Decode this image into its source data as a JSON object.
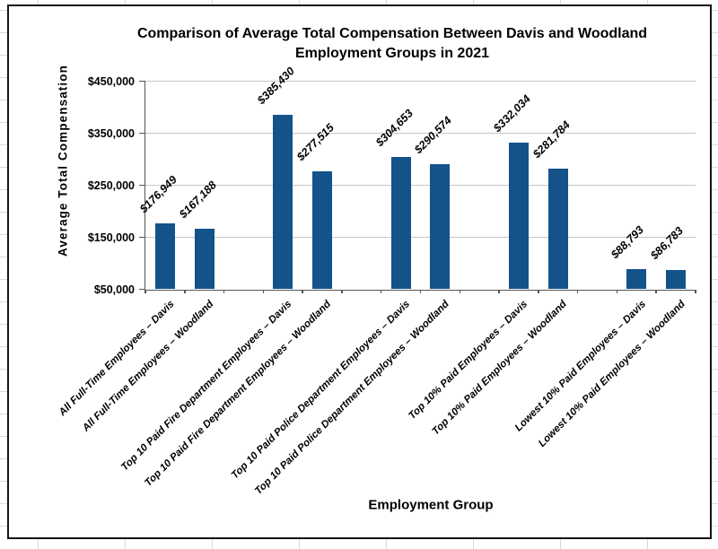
{
  "chart_data": {
    "type": "bar",
    "title": "Comparison of Average Total Compensation Between Davis and Woodland Employment Groups in 2021",
    "title_lines": [
      "Comparison of Average Total Compensation Between Davis and Woodland",
      "Employment Groups in 2021"
    ],
    "xlabel": "Employment Group",
    "ylabel": "Average Total Compensation",
    "ylim": [
      50000,
      450000
    ],
    "grid": "horizontal",
    "legend": "none",
    "yticks": [
      {
        "label": "$450,000",
        "value": 450000
      },
      {
        "label": "$350,000",
        "value": 350000
      },
      {
        "label": "$250,000",
        "value": 250000
      },
      {
        "label": "$150,000",
        "value": 150000
      },
      {
        "label": "$50,000",
        "value": 50000
      }
    ],
    "total_slots": 14,
    "bars": [
      {
        "category": "All Full-Time Employees – Davis",
        "value": 176949,
        "label": "$176,949",
        "slot": 0
      },
      {
        "category": "All Full-Time Employees – Woodland",
        "value": 167188,
        "label": "$167,188",
        "slot": 1
      },
      {
        "category": "Top 10 Paid Fire Department Employees – Davis",
        "value": 385430,
        "label": "$385,430",
        "slot": 3
      },
      {
        "category": "Top 10 Paid Fire Department Employees – Woodland",
        "value": 277515,
        "label": "$277,515",
        "slot": 4
      },
      {
        "category": "Top 10 Paid Police Department Employees – Davis",
        "value": 304653,
        "label": "$304,653",
        "slot": 6
      },
      {
        "category": "Top 10 Paid Police Department Employees – Woodland",
        "value": 290574,
        "label": "$290,574",
        "slot": 7
      },
      {
        "category": "Top 10% Paid Employees – Davis",
        "value": 332034,
        "label": "$332,034",
        "slot": 9
      },
      {
        "category": "Top 10% Paid Employees – Woodland",
        "value": 281784,
        "label": "$281,784",
        "slot": 10
      },
      {
        "category": "Lowest 10% Paid Employees – Davis",
        "value": 88793,
        "label": "$88,793",
        "slot": 12
      },
      {
        "category": "Lowest 10% Paid Employees – Woodland",
        "value": 86783,
        "label": "$86,783",
        "slot": 13
      }
    ],
    "colors": {
      "bar": "#14528A",
      "gridline": "#c7c7c7",
      "axis": "#555555",
      "text": "#000000",
      "chart_border": "#141414"
    }
  }
}
